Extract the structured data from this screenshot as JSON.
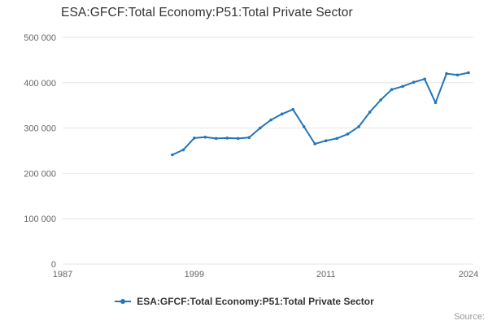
{
  "title": "ESA:GFCF:Total Economy:P51:Total Private Sector",
  "legend": {
    "label": "ESA:GFCF:Total Economy:P51:Total Private Sector"
  },
  "source_label": "Source:",
  "colors": {
    "line": "#2276bb",
    "grid": "#e6e6e6",
    "tick_text": "#666666",
    "title_text": "#333333"
  },
  "chart_data": {
    "type": "line",
    "title": "ESA:GFCF:Total Economy:P51:Total Private Sector",
    "xlabel": "",
    "ylabel": "",
    "x": [
      1997,
      1998,
      1999,
      2000,
      2001,
      2002,
      2003,
      2004,
      2005,
      2006,
      2007,
      2008,
      2009,
      2010,
      2011,
      2012,
      2013,
      2014,
      2015,
      2016,
      2017,
      2018,
      2019,
      2020,
      2021,
      2022,
      2023,
      2024
    ],
    "series": [
      {
        "name": "ESA:GFCF:Total Economy:P51:Total Private Sector",
        "values": [
          241000,
          252000,
          278000,
          280000,
          277000,
          278000,
          277000,
          279000,
          300000,
          318000,
          331000,
          341000,
          303000,
          265000,
          272000,
          277000,
          287000,
          303000,
          335000,
          362000,
          385000,
          392000,
          401000,
          408000,
          356000,
          420000,
          417000,
          422000
        ]
      }
    ],
    "xlim": [
      1987,
      2024
    ],
    "ylim": [
      0,
      500000
    ],
    "x_ticks": [
      1987,
      1999,
      2011,
      2024
    ],
    "x_tick_labels": [
      "1987",
      "1999",
      "2011",
      "2024"
    ],
    "y_ticks": [
      0,
      100000,
      200000,
      300000,
      400000,
      500000
    ],
    "y_tick_labels": [
      "0",
      "100 000",
      "200 000",
      "300 000",
      "400 000",
      "500 000"
    ],
    "grid": "horizontal",
    "legend_position": "bottom"
  }
}
